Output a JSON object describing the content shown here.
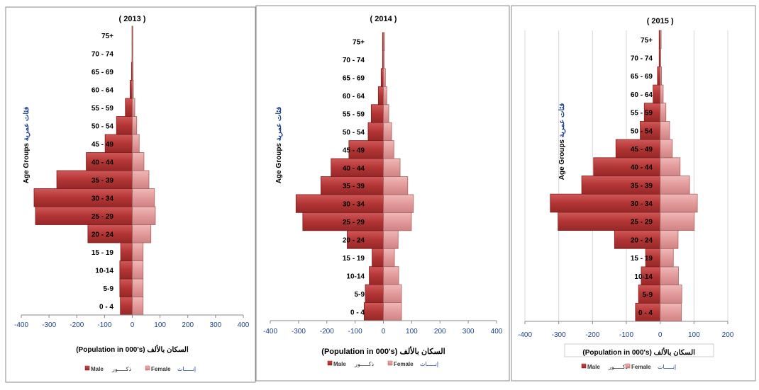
{
  "colors": {
    "male": "#b23434",
    "male_dark": "#7e1f1f",
    "female": "#e49a9a",
    "female_dark": "#a86464",
    "tick": "#1f3f8f",
    "arabic_axis": "#1f3f8f"
  },
  "labels": {
    "y_axis_en": "Age Groups",
    "y_axis_ar": "فئات عمرية",
    "x_axis_en": "(Population in 000's)",
    "x_axis_ar": "السكان بالألف",
    "legend_male": "Male",
    "legend_male_ar": "ذكـــــور",
    "legend_female": "Female",
    "legend_female_ar": "إنـــــاث"
  },
  "chart_data": [
    {
      "type": "bar",
      "orientation": "horizontal",
      "title": "( 2013 )",
      "categories": [
        "0 - 4",
        "5-9",
        "10-14",
        "15 - 19",
        "20 - 24",
        "25 - 29",
        "30 - 34",
        "35 - 39",
        "40 - 44",
        "45 - 49",
        "50 - 54",
        "55 - 59",
        "60 - 64",
        "65 - 69",
        "70 - 74",
        "75+"
      ],
      "series": [
        {
          "name": "Male",
          "values": [
            -43,
            -45,
            -45,
            -42,
            -160,
            -349,
            -354,
            -272,
            -166,
            -98,
            -57,
            -25,
            -8,
            -3,
            -1,
            -1
          ]
        },
        {
          "name": "Female",
          "values": [
            39,
            39,
            39,
            39,
            67,
            83,
            80,
            60,
            42,
            25,
            16,
            9,
            4,
            3,
            1,
            2
          ]
        }
      ],
      "xlim": [
        -400,
        400
      ],
      "xticks": [
        -400,
        -300,
        -200,
        -100,
        0,
        100,
        200,
        300,
        400
      ],
      "grid": false,
      "xlabel": "(Population in 000's) السكان بالألف",
      "ylabel": "Age Groups فئات عمرية",
      "legend": "bottom"
    },
    {
      "type": "bar",
      "orientation": "horizontal",
      "title": "( 2014 )",
      "categories": [
        "0 - 4",
        "5-9",
        "10-14",
        "15 - 19",
        "20 - 24",
        "25 - 29",
        "30 - 34",
        "35 - 39",
        "40 - 44",
        "45 - 49",
        "50 - 54",
        "55 - 59",
        "60 - 64",
        "65 - 69",
        "70 - 74",
        "75+"
      ],
      "series": [
        {
          "name": "Male",
          "values": [
            -68,
            -64,
            -50,
            -40,
            -128,
            -285,
            -309,
            -221,
            -185,
            -122,
            -54,
            -43,
            -18,
            -8,
            -3,
            -3
          ]
        },
        {
          "name": "Female",
          "values": [
            64,
            64,
            54,
            39,
            52,
            99,
            106,
            86,
            59,
            37,
            29,
            19,
            12,
            7,
            3,
            4
          ]
        }
      ],
      "xlim": [
        -400,
        400
      ],
      "xticks": [
        -400,
        -300,
        -200,
        -100,
        0,
        100,
        200,
        300,
        400
      ],
      "grid": false,
      "xlabel": "(Population in 000's) السكان بالألف",
      "ylabel": "Age Groups فئات عمرية",
      "legend": "bottom"
    },
    {
      "type": "bar",
      "orientation": "horizontal",
      "title": "( 2015 )",
      "categories": [
        "0 - 4",
        "5-9",
        "10-14",
        "15 - 19",
        "20 - 24",
        "25 - 29",
        "30 - 34",
        "35 - 39",
        "40 - 44",
        "45 - 49",
        "50 - 54",
        "55 - 59",
        "60 - 64",
        "65 - 69",
        "70 - 74",
        "75+"
      ],
      "series": [
        {
          "name": "Male",
          "values": [
            -73,
            -64,
            -56,
            -43,
            -135,
            -302,
            -325,
            -232,
            -197,
            -131,
            -59,
            -47,
            -21,
            -8,
            -3,
            -3
          ]
        },
        {
          "name": "Female",
          "values": [
            63,
            64,
            54,
            39,
            53,
            101,
            110,
            87,
            59,
            36,
            28,
            17,
            9,
            4,
            1,
            3
          ]
        }
      ],
      "xlim": [
        -400,
        200
      ],
      "xticks": [
        -400,
        -300,
        -200,
        -100,
        0,
        100,
        200
      ],
      "grid": true,
      "xlabel": "(Population in 000's) السكان بالألف",
      "ylabel": "Age Groups فئات عمرية",
      "legend": "bottom"
    }
  ]
}
